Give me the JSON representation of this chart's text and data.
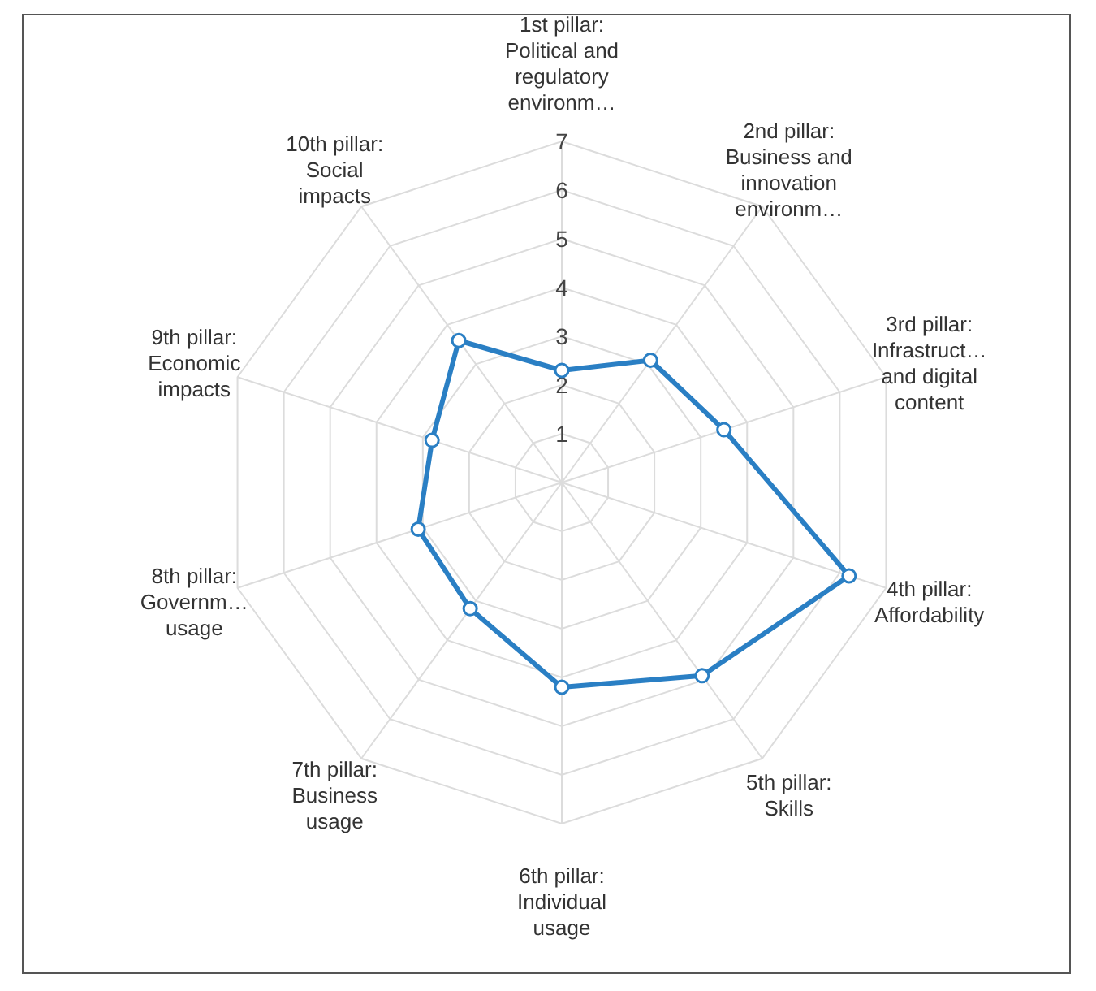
{
  "chart_data": {
    "type": "radar",
    "categories": [
      "1st pillar: Political and regulatory environm…",
      "2nd pillar: Business and innovation environm…",
      "3rd pillar: Infrastruct… and digital content",
      "4th pillar: Affordability",
      "5th pillar: Skills",
      "6th pillar: Individual usage",
      "7th pillar: Business usage",
      "8th pillar: Governm… usage",
      "9th pillar: Economic impacts",
      "10th pillar: Social impacts"
    ],
    "series": [
      {
        "color": "#2a7fc4",
        "values": [
          2.3,
          3.1,
          3.5,
          6.2,
          4.9,
          4.2,
          3.2,
          3.1,
          2.8,
          3.6
        ]
      }
    ],
    "ylim": [
      0,
      7
    ],
    "yticks": [
      1,
      2,
      3,
      4,
      5,
      6,
      7
    ],
    "grid": true,
    "marker": "circle"
  }
}
